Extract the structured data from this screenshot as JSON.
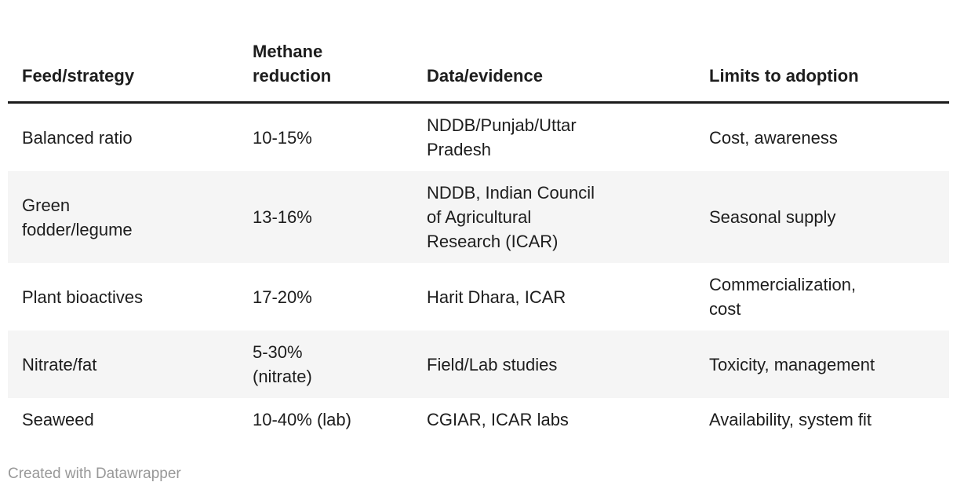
{
  "colors": {
    "background": "#ffffff",
    "text": "#1d1d1d",
    "header_rule": "#1b1b1b",
    "row_stripe": "#f5f5f5",
    "attribution_text": "#989898"
  },
  "chart_data": {
    "type": "table",
    "title": "",
    "columns": [
      {
        "label": "Feed/strategy"
      },
      {
        "label": "Methane\nreduction"
      },
      {
        "label": "Data/evidence"
      },
      {
        "label": "Limits to adoption"
      }
    ],
    "rows": [
      {
        "cells": [
          "Balanced ratio",
          "10-15%",
          "NDDB/Punjab/Uttar\nPradesh",
          "Cost, awareness"
        ]
      },
      {
        "cells": [
          "Green\nfodder/legume",
          "13-16%",
          "NDDB, Indian Council\nof Agricultural\nResearch (ICAR)",
          "Seasonal supply"
        ]
      },
      {
        "cells": [
          "Plant bioactives",
          "17-20%",
          "Harit Dhara, ICAR",
          "Commercialization,\ncost"
        ]
      },
      {
        "cells": [
          "Nitrate/fat",
          "5-30%\n(nitrate)",
          "Field/Lab studies",
          "Toxicity, management"
        ]
      },
      {
        "cells": [
          "Seaweed",
          "10-40% (lab)",
          "CGIAR, ICAR labs",
          "Availability, system fit"
        ]
      }
    ]
  },
  "footer": {
    "attribution": "Created with Datawrapper"
  }
}
